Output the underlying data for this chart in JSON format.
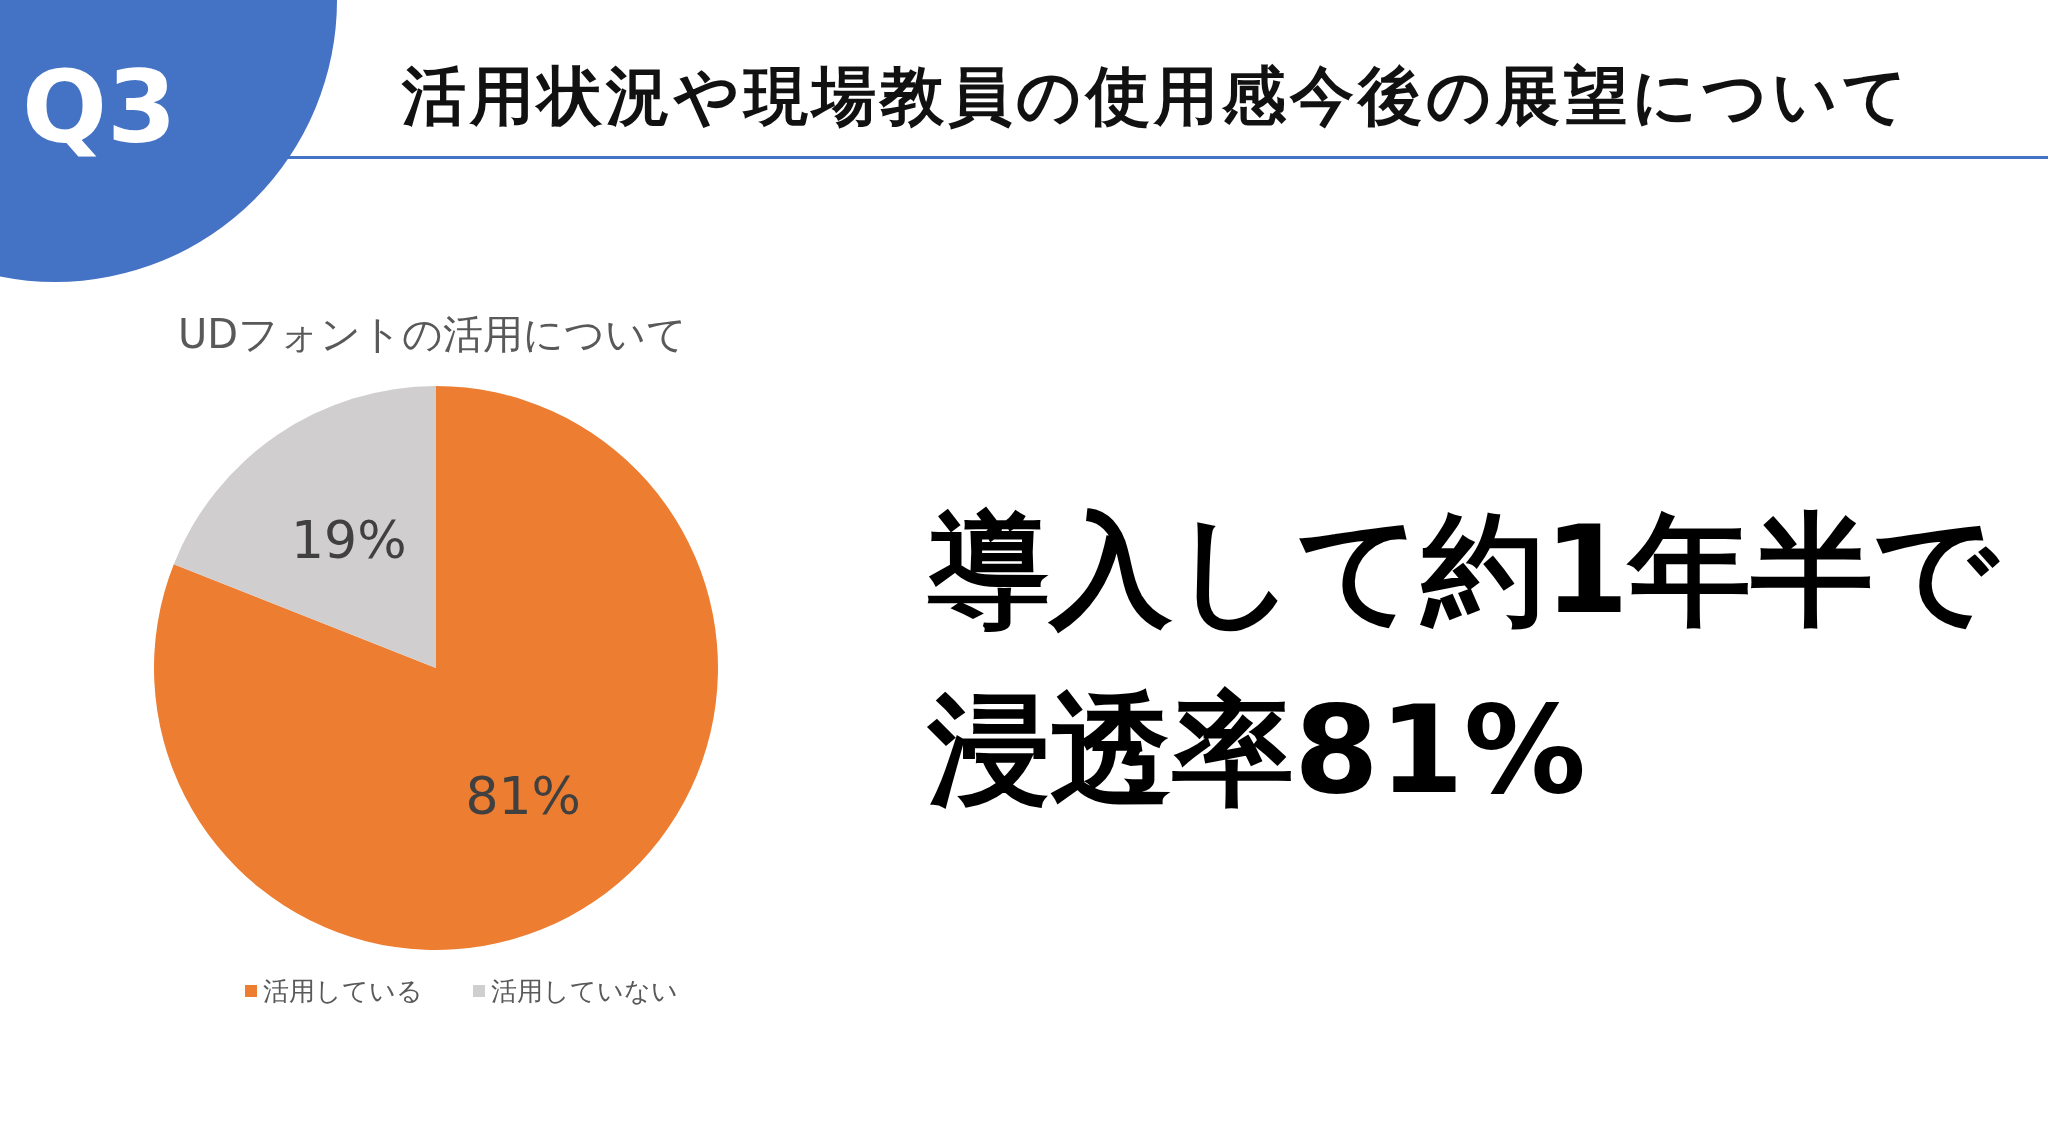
{
  "chart_data": {
    "type": "pie",
    "title": "UDフォントの活用について",
    "categories": [
      "活用している",
      "活用していない"
    ],
    "values": [
      81,
      19
    ],
    "colors": [
      "#ed7d31",
      "#d0cece"
    ],
    "value_labels": [
      "81%",
      "19%"
    ],
    "legend": "bottom",
    "annotations": [
      "Q3",
      "活用状況や現場教員の使用感今後の展望について",
      "導入して約1年半で",
      "浸透率81%"
    ]
  }
}
